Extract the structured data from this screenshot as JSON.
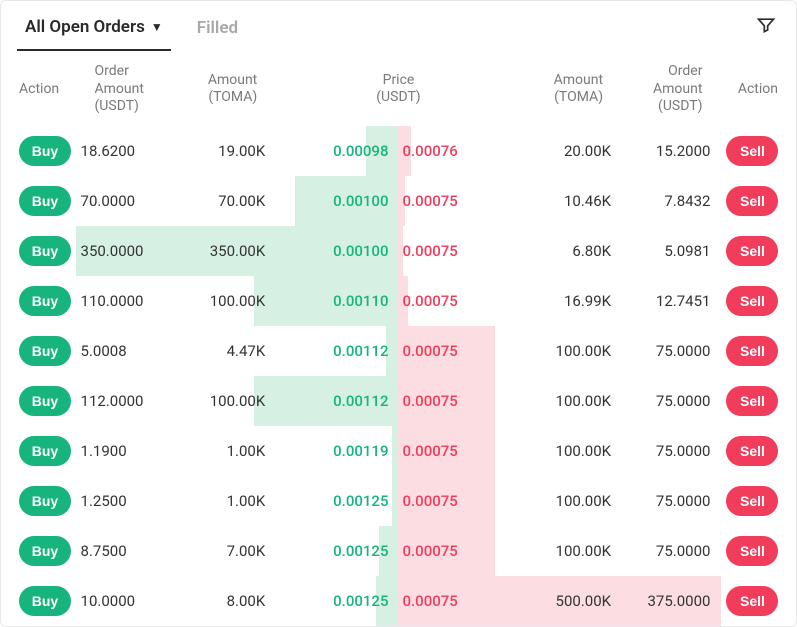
{
  "tabs": {
    "open": "All Open Orders",
    "filled": "Filled"
  },
  "headers": {
    "action": "Action",
    "orderAmount": "Order\nAmount\n(USDT)",
    "amount": "Amount\n(TOMA)",
    "price": "Price\n(USDT)"
  },
  "buttons": {
    "buy": "Buy",
    "sell": "Sell"
  },
  "colors": {
    "buy": "#17b47e",
    "sell": "#f23c5c",
    "bidShade": "#d6f1e3",
    "askShade": "#fcdde2"
  },
  "rows": [
    {
      "bidOA": "18.6200",
      "bidAmt": "19.00K",
      "bidPx": "0.00098",
      "askPx": "0.00076",
      "askAmt": "20.00K",
      "askOA": "15.2000",
      "bidDepth": 0.1,
      "askDepth": 0.04
    },
    {
      "bidOA": "70.0000",
      "bidAmt": "70.00K",
      "bidPx": "0.00100",
      "askPx": "0.00075",
      "askAmt": "10.46K",
      "askOA": "7.8432",
      "bidDepth": 0.32,
      "askDepth": 0.02
    },
    {
      "bidOA": "350.0000",
      "bidAmt": "350.00K",
      "bidPx": "0.00100",
      "askPx": "0.00075",
      "askAmt": "6.80K",
      "askOA": "5.0981",
      "bidDepth": 1.0,
      "askDepth": 0.015
    },
    {
      "bidOA": "110.0000",
      "bidAmt": "100.00K",
      "bidPx": "0.00110",
      "askPx": "0.00075",
      "askAmt": "16.99K",
      "askOA": "12.7451",
      "bidDepth": 0.45,
      "askDepth": 0.03
    },
    {
      "bidOA": "5.0008",
      "bidAmt": "4.47K",
      "bidPx": "0.00112",
      "askPx": "0.00075",
      "askAmt": "100.00K",
      "askOA": "75.0000",
      "bidDepth": 0.04,
      "askDepth": 0.3
    },
    {
      "bidOA": "112.0000",
      "bidAmt": "100.00K",
      "bidPx": "0.00112",
      "askPx": "0.00075",
      "askAmt": "100.00K",
      "askOA": "75.0000",
      "bidDepth": 0.45,
      "askDepth": 0.3
    },
    {
      "bidOA": "1.1900",
      "bidAmt": "1.00K",
      "bidPx": "0.00119",
      "askPx": "0.00075",
      "askAmt": "100.00K",
      "askOA": "75.0000",
      "bidDepth": 0.02,
      "askDepth": 0.3
    },
    {
      "bidOA": "1.2500",
      "bidAmt": "1.00K",
      "bidPx": "0.00125",
      "askPx": "0.00075",
      "askAmt": "100.00K",
      "askOA": "75.0000",
      "bidDepth": 0.02,
      "askDepth": 0.3
    },
    {
      "bidOA": "8.7500",
      "bidAmt": "7.00K",
      "bidPx": "0.00125",
      "askPx": "0.00075",
      "askAmt": "100.00K",
      "askOA": "75.0000",
      "bidDepth": 0.06,
      "askDepth": 0.3
    },
    {
      "bidOA": "10.0000",
      "bidAmt": "8.00K",
      "bidPx": "0.00125",
      "askPx": "0.00075",
      "askAmt": "500.00K",
      "askOA": "375.0000",
      "bidDepth": 0.07,
      "askDepth": 1.0
    }
  ]
}
